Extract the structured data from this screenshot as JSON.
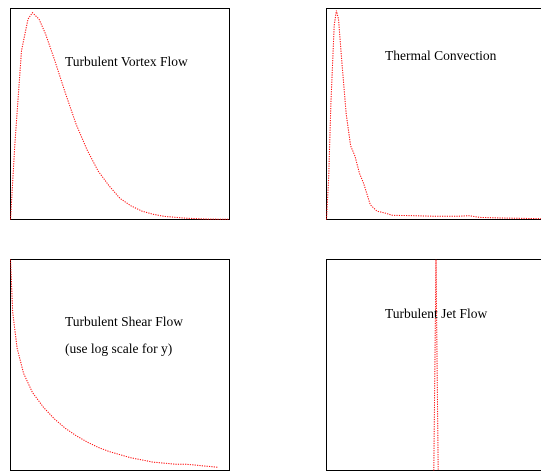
{
  "chart_data": [
    {
      "type": "line",
      "title": "Turbulent Vortex Flow",
      "subtitle": "",
      "xlim": [
        0,
        10
      ],
      "ylim": [
        0,
        1
      ],
      "series": [
        {
          "color": "#ff0000",
          "x": [
            0,
            0.2,
            0.5,
            0.8,
            1.0,
            1.3,
            1.6,
            2.0,
            2.5,
            3.0,
            3.5,
            4.0,
            4.5,
            5.0,
            5.5,
            6.0,
            6.5,
            7.0,
            8.0,
            9.0,
            10.0
          ],
          "y": [
            0,
            0.36,
            0.8,
            0.95,
            0.98,
            0.95,
            0.88,
            0.76,
            0.6,
            0.45,
            0.33,
            0.23,
            0.16,
            0.1,
            0.065,
            0.04,
            0.025,
            0.015,
            0.006,
            0.002,
            0.001
          ]
        }
      ]
    },
    {
      "type": "line",
      "title": "Thermal Convection",
      "subtitle": "",
      "xlim": [
        0,
        10
      ],
      "ylim": [
        0,
        1
      ],
      "series": [
        {
          "color": "#ff0000",
          "x": [
            0,
            0.1,
            0.2,
            0.35,
            0.45,
            0.55,
            0.7,
            0.9,
            1.1,
            1.3,
            1.5,
            1.7,
            2.0,
            2.3,
            2.7,
            3.0,
            4.0,
            5.0,
            6.0,
            6.5,
            7.0,
            8.0,
            9.0,
            10.0
          ],
          "y": [
            0,
            0.2,
            0.55,
            0.92,
            0.99,
            0.95,
            0.75,
            0.5,
            0.35,
            0.3,
            0.22,
            0.17,
            0.07,
            0.04,
            0.03,
            0.02,
            0.018,
            0.015,
            0.015,
            0.018,
            0.01,
            0.007,
            0.005,
            0.004
          ]
        }
      ]
    },
    {
      "type": "line",
      "title": "Turbulent Shear Flow",
      "subtitle": "(use log scale for y)",
      "xlim": [
        0,
        10
      ],
      "ylim": [
        0,
        1
      ],
      "series": [
        {
          "color": "#ff0000",
          "x": [
            0,
            0.1,
            0.3,
            0.6,
            1.0,
            1.5,
            2.0,
            2.5,
            3.0,
            3.5,
            4.0,
            4.5,
            5.0,
            5.5,
            6.0,
            6.5,
            7.0,
            7.5,
            8.0,
            8.5,
            9.0,
            9.5
          ],
          "y": [
            1.0,
            0.75,
            0.58,
            0.46,
            0.37,
            0.3,
            0.245,
            0.2,
            0.165,
            0.135,
            0.11,
            0.09,
            0.075,
            0.06,
            0.05,
            0.04,
            0.035,
            0.03,
            0.03,
            0.025,
            0.02,
            0.015
          ]
        }
      ]
    },
    {
      "type": "line",
      "title": "Turbulent Jet Flow",
      "subtitle": "",
      "xlim": [
        0,
        10
      ],
      "ylim": [
        0,
        1
      ],
      "series": [
        {
          "color": "#ff0000",
          "x": [
            4.9,
            5.0,
            5.1
          ],
          "y": [
            0,
            1,
            0
          ]
        }
      ]
    }
  ]
}
